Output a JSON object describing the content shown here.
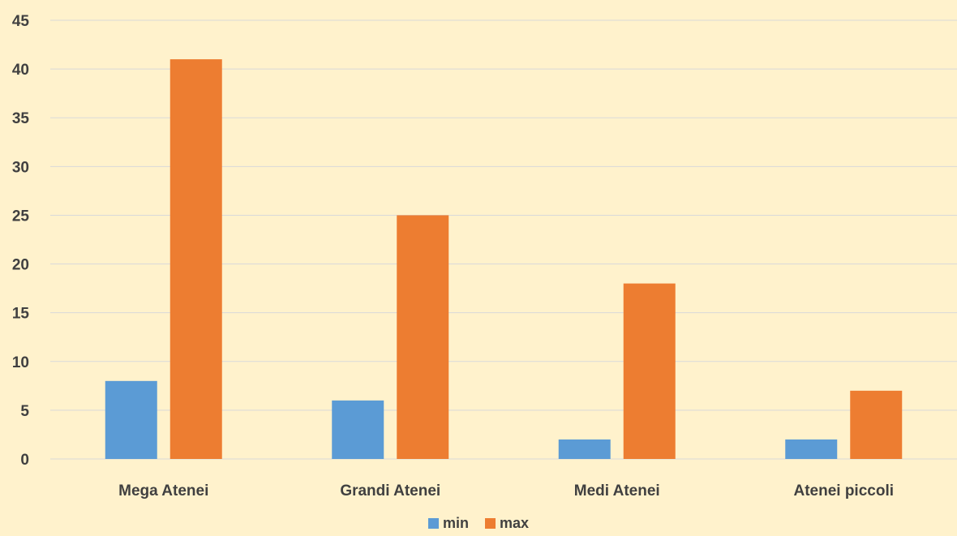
{
  "chart_data": {
    "type": "bar",
    "title": "",
    "xlabel": "",
    "ylabel": "",
    "categories": [
      "Mega Atenei",
      "Grandi Atenei",
      "Medi Atenei",
      "Atenei piccoli"
    ],
    "series": [
      {
        "name": "min",
        "values": [
          8,
          6,
          2,
          2
        ],
        "color": "#5b9bd5"
      },
      {
        "name": "max",
        "values": [
          41,
          25,
          18,
          7
        ],
        "color": "#ed7d31"
      }
    ],
    "ylim": [
      0,
      45
    ],
    "yticks": [
      0,
      5,
      10,
      15,
      20,
      25,
      30,
      35,
      40,
      45
    ],
    "grid": true,
    "legend_position": "bottom",
    "background_color": "#fff2cc",
    "gridline_color": "#d9d9d9"
  }
}
